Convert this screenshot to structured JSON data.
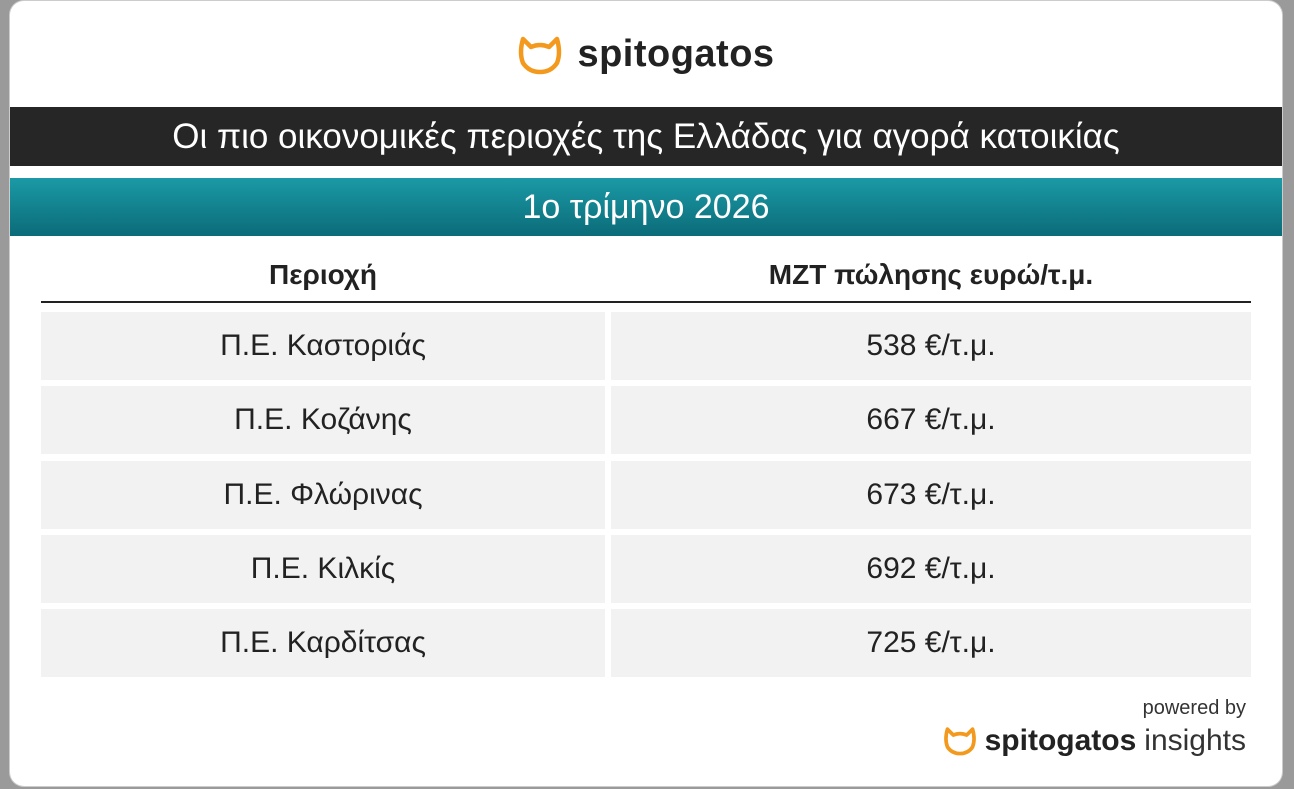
{
  "header": {
    "brand": "spitogatos",
    "title": "Οι πιο οικονομικές περιοχές της Ελλάδας για αγορά κατοικίας",
    "subtitle": "1ο τρίμηνο 2026"
  },
  "table": {
    "columns": [
      "Περιοχή",
      "ΜΖΤ πώλησης ευρώ/τ.μ."
    ],
    "rows": [
      [
        "Π.Ε. Καστοριάς",
        "538 €/τ.μ."
      ],
      [
        "Π.Ε. Κοζάνης",
        "667 €/τ.μ."
      ],
      [
        "Π.Ε. Φλώρινας",
        "673 €/τ.μ."
      ],
      [
        "Π.Ε. Κιλκίς",
        "692 €/τ.μ."
      ],
      [
        "Π.Ε. Καρδίτσας",
        "725 €/τ.μ."
      ]
    ]
  },
  "footer": {
    "powered_by": "powered by",
    "brand": "spitogatos",
    "product": "insights"
  }
}
